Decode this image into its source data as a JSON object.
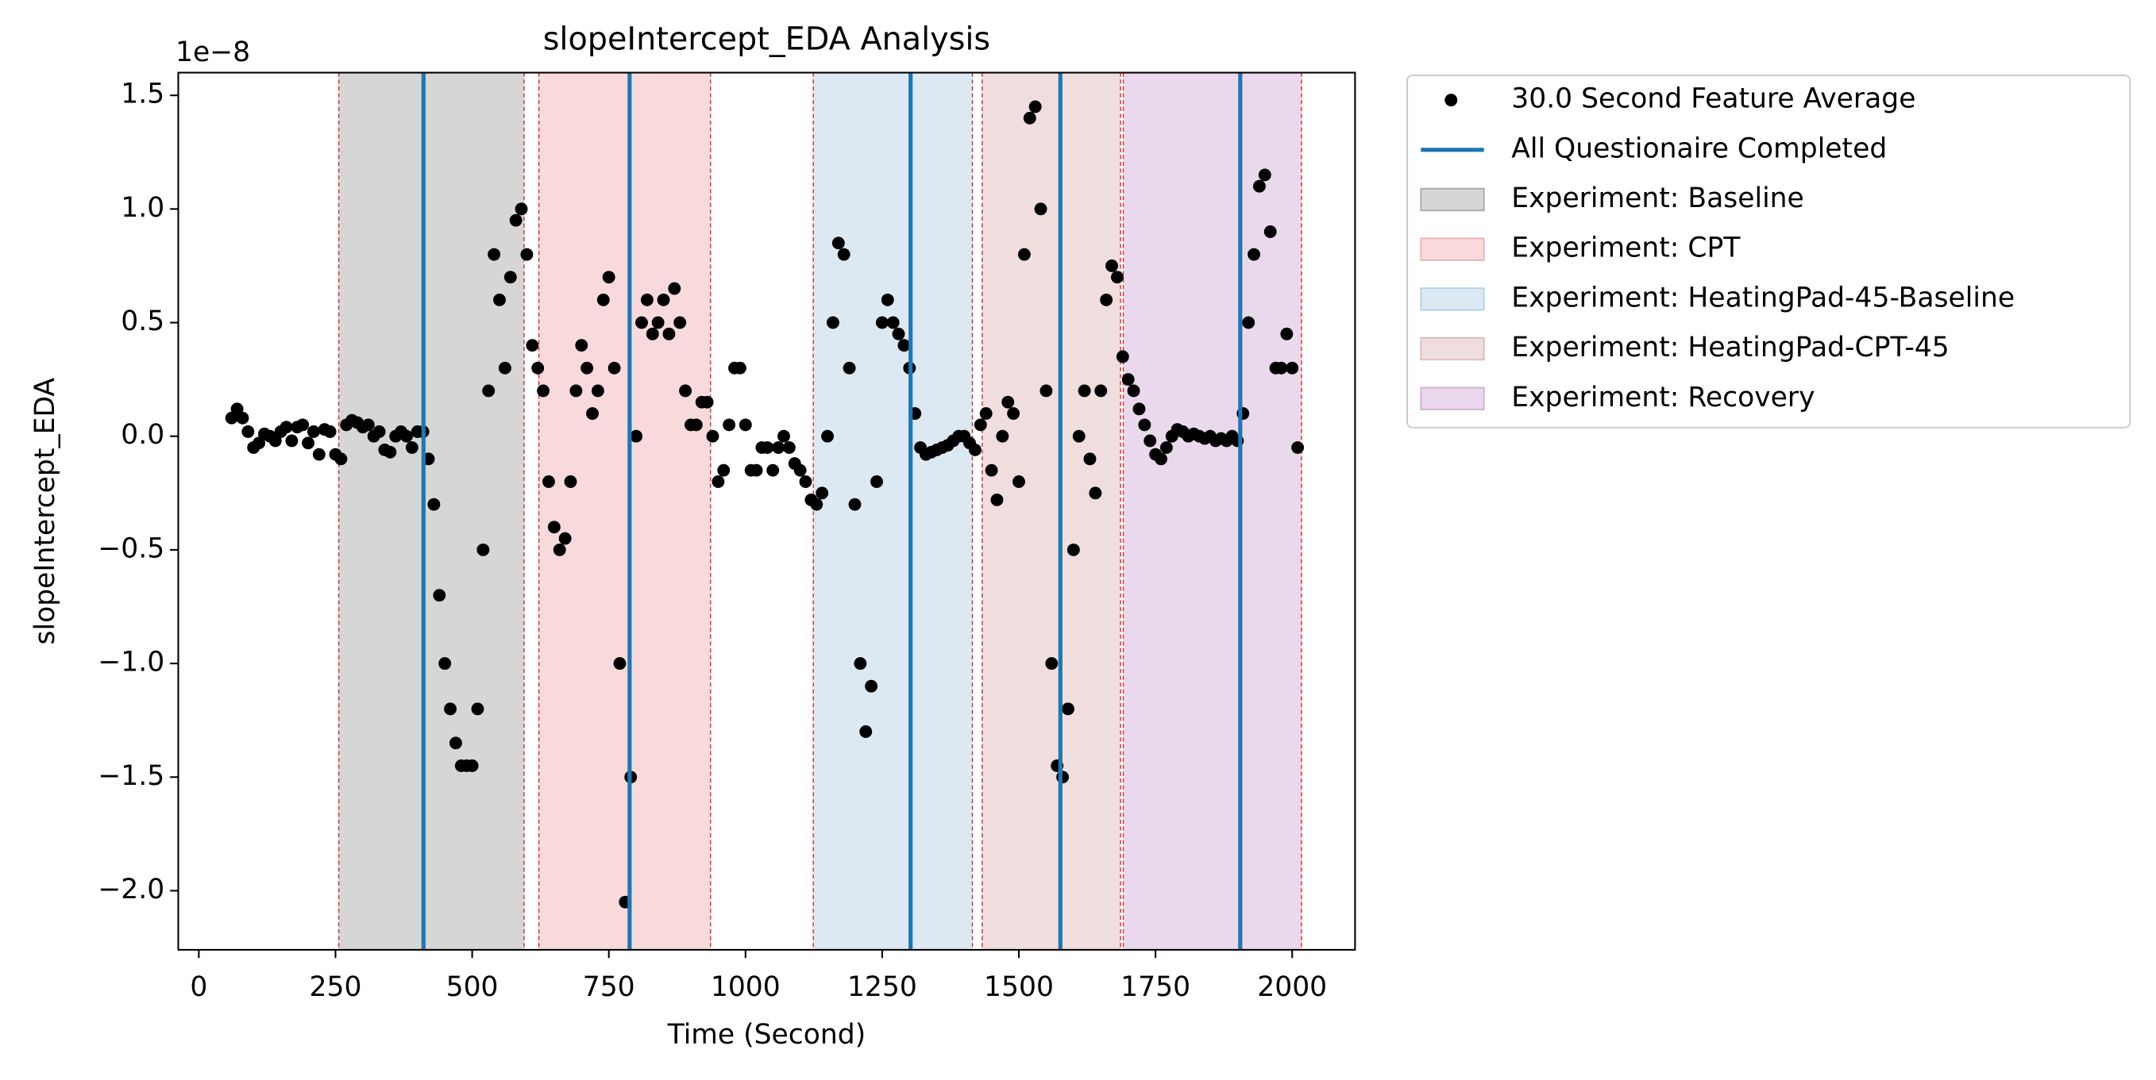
{
  "chart_data": {
    "type": "scatter",
    "title": "slopeIntercept_EDA Analysis",
    "xlabel": "Time (Second)",
    "ylabel": "slopeIntercept_EDA",
    "y_offset_label": "1e−8",
    "xlim": [
      -37.6,
      2115
    ],
    "ylim": [
      -2.26,
      1.6
    ],
    "xticks": [
      0,
      250,
      500,
      750,
      1000,
      1250,
      1500,
      1750,
      2000
    ],
    "yticks": [
      {
        "value": -2.0,
        "label": "−2.0"
      },
      {
        "value": -1.5,
        "label": "−1.5"
      },
      {
        "value": -1.0,
        "label": "−1.0"
      },
      {
        "value": -0.5,
        "label": "−0.5"
      },
      {
        "value": 0,
        "label": "0.0"
      },
      0.5,
      {
        "value": 1.0,
        "label": "1.0"
      },
      1.5
    ],
    "legend": "outside upper right",
    "series": [
      {
        "name": "30.0 Second Feature Average",
        "color": "#000000",
        "x": [
          60,
          70,
          80,
          90,
          100,
          110,
          120,
          130,
          140,
          150,
          160,
          170,
          180,
          190,
          200,
          210,
          220,
          230,
          240,
          250,
          260,
          270,
          280,
          290,
          300,
          310,
          320,
          330,
          340,
          350,
          360,
          370,
          380,
          390,
          400,
          410,
          420,
          430,
          440,
          450,
          460,
          470,
          480,
          490,
          500,
          510,
          520,
          530,
          540,
          550,
          560,
          570,
          580,
          590,
          600,
          610,
          620,
          630,
          640,
          650,
          660,
          670,
          680,
          690,
          700,
          710,
          720,
          730,
          740,
          750,
          760,
          770,
          780,
          790,
          800,
          810,
          820,
          830,
          840,
          850,
          860,
          870,
          880,
          890,
          900,
          910,
          920,
          930,
          940,
          950,
          960,
          970,
          980,
          990,
          1000,
          1010,
          1020,
          1030,
          1040,
          1050,
          1060,
          1070,
          1080,
          1090,
          1100,
          1110,
          1120,
          1130,
          1140,
          1150,
          1160,
          1170,
          1180,
          1190,
          1200,
          1210,
          1220,
          1230,
          1240,
          1250,
          1260,
          1270,
          1280,
          1290,
          1300,
          1310,
          1320,
          1330,
          1340,
          1350,
          1360,
          1370,
          1380,
          1390,
          1400,
          1410,
          1420,
          1430,
          1440,
          1450,
          1460,
          1470,
          1480,
          1490,
          1500,
          1510,
          1520,
          1530,
          1540,
          1550,
          1560,
          1570,
          1580,
          1590,
          1600,
          1610,
          1620,
          1630,
          1640,
          1650,
          1660,
          1670,
          1680,
          1690,
          1700,
          1710,
          1720,
          1730,
          1740,
          1750,
          1760,
          1770,
          1780,
          1790,
          1800,
          1810,
          1820,
          1830,
          1840,
          1850,
          1860,
          1870,
          1880,
          1890,
          1900,
          1910,
          1920,
          1930,
          1940,
          1950,
          1960,
          1970,
          1980,
          1990,
          2000,
          2010
        ],
        "values": [
          0.08,
          0.12,
          0.08,
          0.02,
          -0.05,
          -0.03,
          0.01,
          0.0,
          -0.02,
          0.02,
          0.04,
          -0.02,
          0.04,
          0.05,
          -0.03,
          0.02,
          -0.08,
          0.03,
          0.02,
          -0.08,
          -0.1,
          0.05,
          0.07,
          0.06,
          0.04,
          0.05,
          0.0,
          0.02,
          -0.06,
          -0.07,
          0.0,
          0.02,
          0.0,
          -0.05,
          0.02,
          0.02,
          -0.1,
          -0.3,
          -0.7,
          -1.0,
          -1.2,
          -1.35,
          -1.45,
          -1.45,
          -1.45,
          -1.2,
          -0.5,
          0.2,
          0.8,
          0.6,
          0.3,
          0.7,
          0.95,
          1.0,
          0.8,
          0.4,
          0.3,
          0.2,
          -0.2,
          -0.4,
          -0.5,
          -0.45,
          -0.2,
          0.2,
          0.4,
          0.3,
          0.1,
          0.2,
          0.6,
          0.7,
          0.3,
          -1.0,
          -2.05,
          -1.5,
          0.0,
          0.5,
          0.6,
          0.45,
          0.5,
          0.6,
          0.45,
          0.65,
          0.5,
          0.2,
          0.05,
          0.05,
          0.15,
          0.15,
          0.0,
          -0.2,
          -0.15,
          0.05,
          0.3,
          0.3,
          0.05,
          -0.15,
          -0.15,
          -0.05,
          -0.05,
          -0.15,
          -0.05,
          0.0,
          -0.05,
          -0.12,
          -0.15,
          -0.2,
          -0.28,
          -0.3,
          -0.25,
          0.0,
          0.5,
          0.85,
          0.8,
          0.3,
          -0.3,
          -1.0,
          -1.3,
          -1.1,
          -0.2,
          0.5,
          0.6,
          0.5,
          0.45,
          0.4,
          0.3,
          0.1,
          -0.05,
          -0.08,
          -0.07,
          -0.06,
          -0.05,
          -0.04,
          -0.02,
          0.0,
          0.0,
          -0.03,
          -0.06,
          0.05,
          0.1,
          -0.15,
          -0.28,
          0.0,
          0.15,
          0.1,
          -0.2,
          0.8,
          1.4,
          1.45,
          1.0,
          0.2,
          -1.0,
          -1.45,
          -1.5,
          -1.2,
          -0.5,
          0.0,
          0.2,
          -0.1,
          -0.25,
          0.2,
          0.6,
          0.75,
          0.7,
          0.35,
          0.25,
          0.2,
          0.12,
          0.05,
          -0.02,
          -0.08,
          -0.1,
          -0.05,
          0.0,
          0.03,
          0.02,
          0.0,
          0.01,
          0.0,
          -0.01,
          0.0,
          -0.02,
          -0.01,
          -0.02,
          0.0,
          -0.02,
          0.1,
          0.5,
          0.8,
          1.1,
          1.15,
          0.9,
          0.3,
          0.3,
          0.45,
          0.3,
          -0.05
        ]
      }
    ],
    "vlines": {
      "name": "All Questionaire Completed",
      "color": "#1f77b4",
      "x": [
        411,
        788,
        1302,
        1576,
        1905
      ]
    },
    "span_edge_color": "#d62728",
    "span_alpha": 0.3,
    "spans": [
      {
        "name": "Experiment: Baseline",
        "color": "#767676",
        "start": 256,
        "end": 595
      },
      {
        "name": "Experiment: CPT",
        "color": "#e8848a",
        "start": 622,
        "end": 936
      },
      {
        "name": "Experiment: HeatingPad-45-Baseline",
        "color": "#8ab6d7",
        "start": 1124,
        "end": 1415
      },
      {
        "name": "Experiment: HeatingPad-CPT-45",
        "color": "#cd9191",
        "start": 1433,
        "end": 1686
      },
      {
        "name": "Experiment: Recovery",
        "color": "#b980c0",
        "start": 1691,
        "end": 2017
      }
    ]
  }
}
